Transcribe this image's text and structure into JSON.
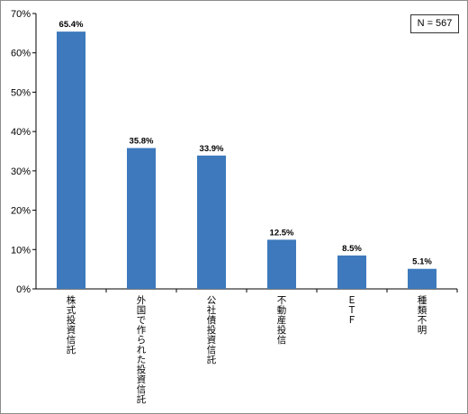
{
  "chart_data": {
    "type": "bar",
    "categories": [
      "株式投資信託",
      "外国で作られた投資信託",
      "公社債投資信託",
      "不動産投信",
      "ＥＴＦ",
      "種類不明"
    ],
    "values": [
      65.4,
      35.8,
      33.9,
      12.5,
      8.5,
      5.1
    ],
    "value_labels": [
      "65.4%",
      "35.8%",
      "33.9%",
      "12.5%",
      "8.5%",
      "5.1%"
    ],
    "y_ticks": [
      "0%",
      "10%",
      "20%",
      "30%",
      "40%",
      "50%",
      "60%",
      "70%"
    ],
    "ylim": [
      0,
      70
    ],
    "bar_color": "#3d79bc",
    "grid": false,
    "annotation": "N = 567"
  }
}
